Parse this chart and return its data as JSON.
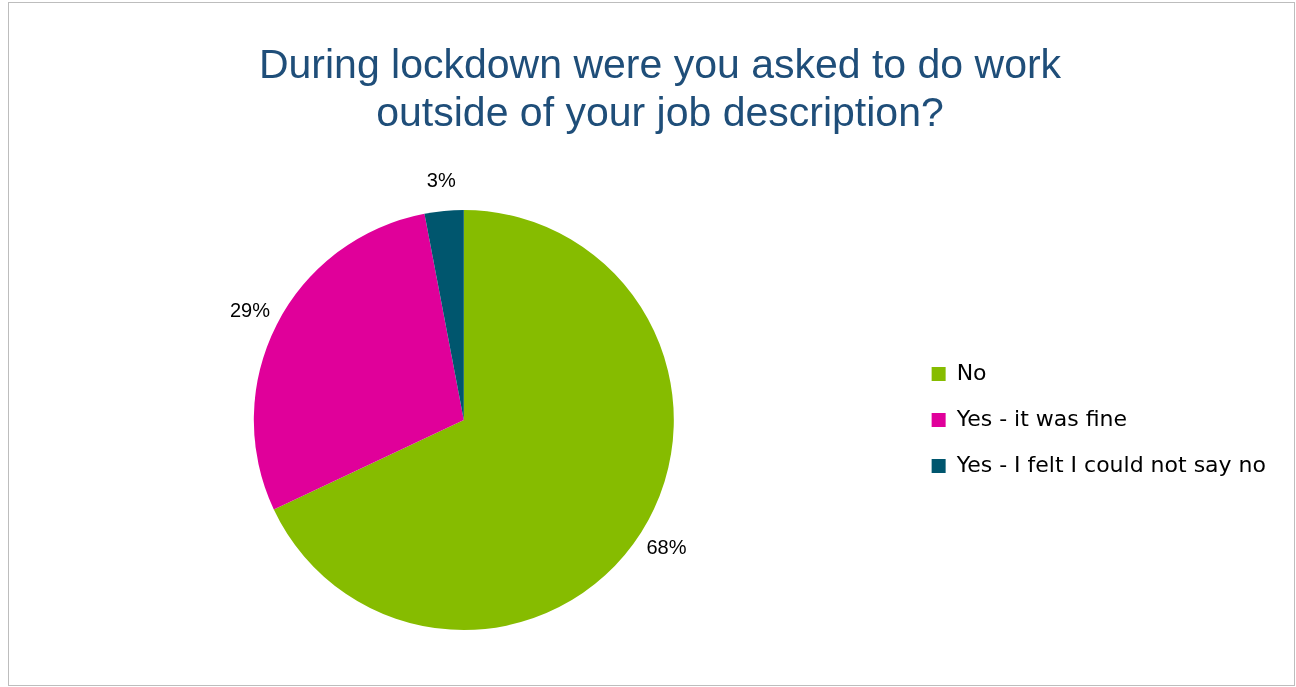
{
  "chart_data": {
    "type": "pie",
    "title": "During lockdown were you asked to do work outside of your job description?",
    "categories": [
      "No",
      "Yes - it was fine",
      "Yes - I felt I could not say no"
    ],
    "values": [
      68,
      29,
      3
    ],
    "colors": [
      "#86bc00",
      "#e0009a",
      "#00566e"
    ],
    "value_labels": [
      "68%",
      "29%",
      "3%"
    ],
    "legend": "right"
  }
}
